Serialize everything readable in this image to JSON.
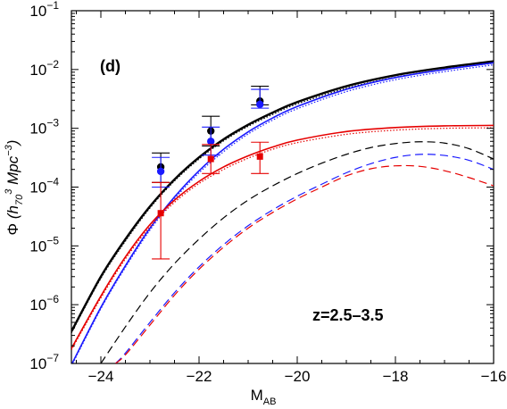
{
  "chart_data": {
    "type": "line",
    "panel_label": "(d)",
    "annotation": "z=2.5–3.5",
    "xlabel": {
      "main": "M",
      "sub": "AB"
    },
    "ylabel": {
      "phi": "Φ",
      "open": "(h",
      "sub70": "70",
      "sup3a": "3",
      "mpc": "Mpc",
      "sup3b": "−3",
      "close": ")"
    },
    "xlim": [
      -24.6,
      -16
    ],
    "ylim_log10": [
      -7,
      -1
    ],
    "y_scale": "log",
    "x_ticks": [
      {
        "value": -24,
        "label": "−24"
      },
      {
        "value": -22,
        "label": "−22"
      },
      {
        "value": -20,
        "label": "−20"
      },
      {
        "value": -18,
        "label": "−18"
      },
      {
        "value": -16,
        "label": "−16"
      }
    ],
    "y_ticks": [
      {
        "exp": -7,
        "base": "10",
        "sup": "−7"
      },
      {
        "exp": -6,
        "base": "10",
        "sup": "−6"
      },
      {
        "exp": -5,
        "base": "10",
        "sup": "−5"
      },
      {
        "exp": -4,
        "base": "10",
        "sup": "−4"
      },
      {
        "exp": -3,
        "base": "10",
        "sup": "−3"
      },
      {
        "exp": -2,
        "base": "10",
        "sup": "−2"
      },
      {
        "exp": -1,
        "base": "10",
        "sup": "−1"
      }
    ],
    "colors": {
      "black": "#000000",
      "blue": "#1a1aff",
      "red": "#e60000"
    },
    "series": [
      {
        "color": "black",
        "style": "solid",
        "width": 2.4,
        "x": [
          -24.6,
          -24,
          -23.5,
          -23,
          -22.5,
          -22,
          -21.5,
          -21,
          -20.5,
          -20,
          -19,
          -18,
          -17,
          -16
        ],
        "y": [
          3.5e-07,
          3e-06,
          1.3e-05,
          4.7e-05,
          0.000135,
          0.00032,
          0.00065,
          0.00115,
          0.00185,
          0.0028,
          0.0052,
          0.008,
          0.0108,
          0.0138
        ]
      },
      {
        "color": "black",
        "style": "dotted",
        "width": 1.2,
        "x": [
          -24.6,
          -24,
          -23.5,
          -23,
          -22.5,
          -22,
          -21.5,
          -21,
          -20.5,
          -20,
          -19,
          -18,
          -17,
          -16
        ],
        "y": [
          3.3e-07,
          2.8e-06,
          1.2e-05,
          4.4e-05,
          0.000127,
          0.0003,
          0.00061,
          0.00108,
          0.00172,
          0.0026,
          0.0048,
          0.0074,
          0.01,
          0.0128
        ]
      },
      {
        "color": "blue",
        "style": "solid",
        "width": 1.6,
        "x": [
          -24.6,
          -24,
          -23.5,
          -23,
          -22.5,
          -22,
          -21.5,
          -21,
          -20.5,
          -20,
          -19,
          -18,
          -17,
          -16
        ],
        "y": [
          9.5e-08,
          9e-07,
          4.6e-06,
          2e-05,
          6.8e-05,
          0.00019,
          0.00044,
          0.00087,
          0.0015,
          0.00235,
          0.0046,
          0.0073,
          0.01,
          0.013
        ]
      },
      {
        "color": "blue",
        "style": "dotted",
        "width": 1.2,
        "x": [
          -24.6,
          -24,
          -23.5,
          -23,
          -22.5,
          -22,
          -21.5,
          -21,
          -20.5,
          -20,
          -19,
          -18,
          -17,
          -16
        ],
        "y": [
          9e-08,
          8.5e-07,
          4.3e-06,
          1.85e-05,
          6.3e-05,
          0.000175,
          0.0004,
          0.0008,
          0.00138,
          0.00215,
          0.0042,
          0.0067,
          0.0092,
          0.012
        ]
      },
      {
        "color": "red",
        "style": "solid",
        "width": 1.6,
        "x": [
          -24.6,
          -24,
          -23.5,
          -23,
          -22.5,
          -22,
          -21.5,
          -21,
          -20.5,
          -20,
          -19,
          -18,
          -17,
          -16
        ],
        "y": [
          1.8e-07,
          1.4e-06,
          6.5e-06,
          2.3e-05,
          6e-05,
          0.000125,
          0.00022,
          0.00034,
          0.00048,
          0.00063,
          0.00088,
          0.00103,
          0.0011,
          0.00112
        ]
      },
      {
        "color": "red",
        "style": "dotted",
        "width": 1.2,
        "x": [
          -24.6,
          -24,
          -23.5,
          -23,
          -22.5,
          -22,
          -21.5,
          -21,
          -20.5,
          -20,
          -19,
          -18,
          -17,
          -16
        ],
        "y": [
          1.7e-07,
          1.3e-06,
          6e-06,
          2.1e-05,
          5.5e-05,
          0.000115,
          0.0002,
          0.00031,
          0.00044,
          0.00057,
          0.00079,
          0.00093,
          0.001,
          0.00102
        ]
      },
      {
        "color": "black",
        "style": "dashed",
        "width": 1.2,
        "x": [
          -24,
          -23.5,
          -23,
          -22.5,
          -22,
          -21.5,
          -21,
          -20.5,
          -20,
          -19.5,
          -19,
          -18.5,
          -18,
          -17.5,
          -17,
          -16.5,
          -16
        ],
        "y": [
          1e-07,
          4.2e-07,
          1.6e-06,
          5e-06,
          1.3e-05,
          3e-05,
          6e-05,
          0.000105,
          0.00017,
          0.000255,
          0.00036,
          0.00047,
          0.00055,
          0.00059,
          0.00056,
          0.00045,
          0.0003
        ]
      },
      {
        "color": "blue",
        "style": "dashed",
        "width": 1.2,
        "x": [
          -23.7,
          -23.5,
          -23,
          -22.5,
          -22,
          -21.5,
          -21,
          -20.5,
          -20,
          -19.5,
          -19,
          -18.5,
          -18,
          -17.5,
          -17,
          -16.5,
          -16
        ],
        "y": [
          1e-07,
          1.5e-07,
          5e-07,
          1.6e-06,
          4.4e-06,
          1.05e-05,
          2.2e-05,
          4.1e-05,
          7e-05,
          0.000112,
          0.000175,
          0.00025,
          0.00032,
          0.00036,
          0.000345,
          0.000285,
          0.0002
        ]
      },
      {
        "color": "red",
        "style": "dashed",
        "width": 1.2,
        "x": [
          -23.7,
          -23.5,
          -23,
          -22.5,
          -22,
          -21.5,
          -21,
          -20.5,
          -20,
          -19.5,
          -19,
          -18.5,
          -18,
          -17.5,
          -17,
          -16.5,
          -16
        ],
        "y": [
          1e-07,
          1.4e-07,
          4.5e-07,
          1.45e-06,
          4e-06,
          9.5e-06,
          2e-05,
          3.7e-05,
          6.3e-05,
          0.0001,
          0.000155,
          0.000205,
          0.00023,
          0.000225,
          0.00019,
          0.000145,
          0.000105
        ]
      }
    ],
    "points": [
      {
        "color": "black",
        "marker": "circle",
        "x": -22.78,
        "y": 0.00022,
        "ylo": 0.00012,
        "yhi": 0.00038
      },
      {
        "color": "blue",
        "marker": "circle",
        "x": -22.78,
        "y": 0.000185,
        "ylo": 0.0001,
        "yhi": 0.00032
      },
      {
        "color": "red",
        "marker": "square",
        "x": -22.78,
        "y": 3.6e-05,
        "ylo": 6e-06,
        "yhi": 0.00012
      },
      {
        "color": "black",
        "marker": "circle",
        "x": -21.76,
        "y": 0.0009,
        "ylo": 0.0005,
        "yhi": 0.0016
      },
      {
        "color": "blue",
        "marker": "circle",
        "x": -21.76,
        "y": 0.0006,
        "ylo": 0.00035,
        "yhi": 0.00105
      },
      {
        "color": "red",
        "marker": "square",
        "x": -21.76,
        "y": 0.0003,
        "ylo": 0.00017,
        "yhi": 0.00053
      },
      {
        "color": "black",
        "marker": "circle",
        "x": -20.76,
        "y": 0.0029,
        "ylo": 0.0025,
        "yhi": 0.0052
      },
      {
        "color": "blue",
        "marker": "circle",
        "x": -20.76,
        "y": 0.00255,
        "ylo": 0.0022,
        "yhi": 0.0046
      },
      {
        "color": "red",
        "marker": "square",
        "x": -20.76,
        "y": 0.00033,
        "ylo": 0.00017,
        "yhi": 0.00058
      }
    ]
  }
}
